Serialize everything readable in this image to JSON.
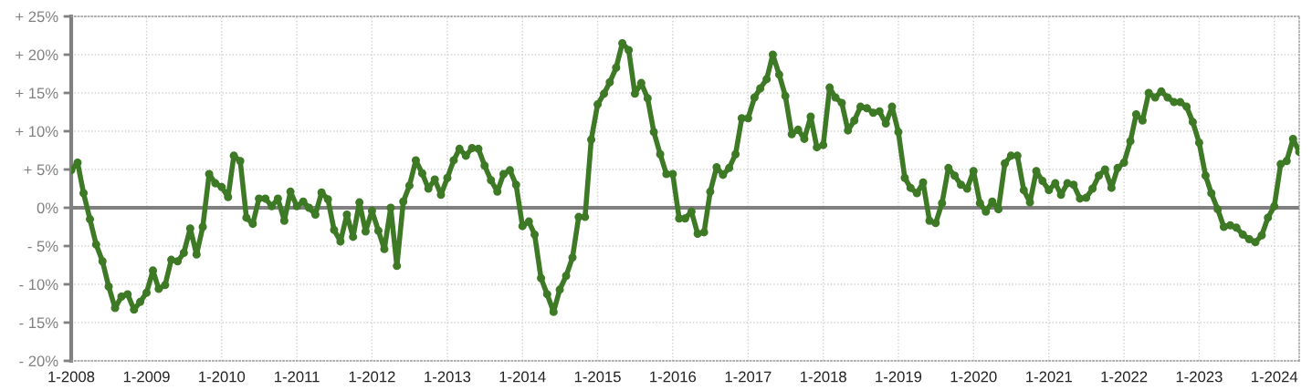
{
  "chart_data": {
    "type": "line",
    "x": [
      "2008-01",
      "2008-02",
      "2008-03",
      "2008-04",
      "2008-05",
      "2008-06",
      "2008-07",
      "2008-08",
      "2008-09",
      "2008-10",
      "2008-11",
      "2008-12",
      "2009-01",
      "2009-02",
      "2009-03",
      "2009-04",
      "2009-05",
      "2009-06",
      "2009-07",
      "2009-08",
      "2009-09",
      "2009-10",
      "2009-11",
      "2009-12",
      "2010-01",
      "2010-02",
      "2010-03",
      "2010-04",
      "2010-05",
      "2010-06",
      "2010-07",
      "2010-08",
      "2010-09",
      "2010-10",
      "2010-11",
      "2010-12",
      "2011-01",
      "2011-02",
      "2011-03",
      "2011-04",
      "2011-05",
      "2011-06",
      "2011-07",
      "2011-08",
      "2011-09",
      "2011-10",
      "2011-11",
      "2011-12",
      "2012-01",
      "2012-02",
      "2012-03",
      "2012-04",
      "2012-05",
      "2012-06",
      "2012-07",
      "2012-08",
      "2012-09",
      "2012-10",
      "2012-11",
      "2012-12",
      "2013-01",
      "2013-02",
      "2013-03",
      "2013-04",
      "2013-05",
      "2013-06",
      "2013-07",
      "2013-08",
      "2013-09",
      "2013-10",
      "2013-11",
      "2013-12",
      "2014-01",
      "2014-02",
      "2014-03",
      "2014-04",
      "2014-05",
      "2014-06",
      "2014-07",
      "2014-08",
      "2014-09",
      "2014-10",
      "2014-11",
      "2014-12",
      "2015-01",
      "2015-02",
      "2015-03",
      "2015-04",
      "2015-05",
      "2015-06",
      "2015-07",
      "2015-08",
      "2015-09",
      "2015-10",
      "2015-11",
      "2015-12",
      "2016-01",
      "2016-02",
      "2016-03",
      "2016-04",
      "2016-05",
      "2016-06",
      "2016-07",
      "2016-08",
      "2016-09",
      "2016-10",
      "2016-11",
      "2016-12",
      "2017-01",
      "2017-02",
      "2017-03",
      "2017-04",
      "2017-05",
      "2017-06",
      "2017-07",
      "2017-08",
      "2017-09",
      "2017-10",
      "2017-11",
      "2017-12",
      "2018-01",
      "2018-02",
      "2018-03",
      "2018-04",
      "2018-05",
      "2018-06",
      "2018-07",
      "2018-08",
      "2018-09",
      "2018-10",
      "2018-11",
      "2018-12",
      "2019-01",
      "2019-02",
      "2019-03",
      "2019-04",
      "2019-05",
      "2019-06",
      "2019-07",
      "2019-08",
      "2019-09",
      "2019-10",
      "2019-11",
      "2019-12",
      "2020-01",
      "2020-02",
      "2020-03",
      "2020-04",
      "2020-05",
      "2020-06",
      "2020-07",
      "2020-08",
      "2020-09",
      "2020-10",
      "2020-11",
      "2020-12",
      "2021-01",
      "2021-02",
      "2021-03",
      "2021-04",
      "2021-05",
      "2021-06",
      "2021-07",
      "2021-08",
      "2021-09",
      "2021-10",
      "2021-11",
      "2021-12",
      "2022-01",
      "2022-02",
      "2022-03",
      "2022-04",
      "2022-05",
      "2022-06",
      "2022-07",
      "2022-08",
      "2022-09",
      "2022-10",
      "2022-11",
      "2022-12",
      "2023-01",
      "2023-02",
      "2023-03",
      "2023-04",
      "2023-05",
      "2023-06",
      "2023-07",
      "2023-08",
      "2023-09",
      "2023-10",
      "2023-11",
      "2023-12",
      "2024-01",
      "2024-02",
      "2024-03",
      "2024-04",
      "2024-05"
    ],
    "series": [
      {
        "color": "#3e7a26",
        "values": [
          4.9,
          5.9,
          1.9,
          -1.5,
          -4.8,
          -7.0,
          -10.3,
          -13.1,
          -11.6,
          -11.3,
          -13.3,
          -12.3,
          -11.1,
          -8.2,
          -10.6,
          -10.1,
          -6.8,
          -7.0,
          -5.9,
          -2.7,
          -6.1,
          -2.5,
          4.4,
          3.2,
          2.7,
          1.4,
          6.8,
          6.1,
          -1.3,
          -2.1,
          1.2,
          1.2,
          0.2,
          1.2,
          -1.7,
          2.1,
          0.2,
          0.8,
          0.0,
          -0.9,
          2.0,
          1.1,
          -2.9,
          -4.4,
          -0.9,
          -3.8,
          0.7,
          -3.1,
          -0.4,
          -3.0,
          -5.4,
          0.0,
          -7.6,
          0.8,
          2.9,
          6.2,
          4.5,
          2.5,
          3.7,
          1.7,
          3.9,
          6.2,
          7.7,
          6.8,
          7.8,
          7.7,
          5.5,
          3.6,
          2.1,
          4.4,
          4.9,
          3.0,
          -2.4,
          -1.8,
          -3.5,
          -9.2,
          -11.3,
          -13.6,
          -10.7,
          -8.9,
          -6.5,
          -1.2,
          -1.2,
          8.9,
          13.5,
          14.9,
          16.4,
          18.3,
          21.5,
          20.6,
          14.9,
          16.3,
          14.3,
          9.9,
          7.0,
          4.4,
          4.4,
          -1.4,
          -1.4,
          -0.5,
          -3.4,
          -3.2,
          2.1,
          5.3,
          4.3,
          5.2,
          7.0,
          11.7,
          11.7,
          14.4,
          15.6,
          16.8,
          20.0,
          17.4,
          14.6,
          9.6,
          10.2,
          9.0,
          11.9,
          7.9,
          8.2,
          15.7,
          14.4,
          13.7,
          10.1,
          11.4,
          13.2,
          13.0,
          12.4,
          12.6,
          11.0,
          13.2,
          9.9,
          3.9,
          2.6,
          1.9,
          3.3,
          -1.7,
          -2.0,
          0.6,
          5.2,
          4.2,
          3.0,
          2.5,
          4.8,
          0.6,
          -0.5,
          0.8,
          -0.2,
          5.8,
          6.8,
          6.8,
          2.3,
          0.7,
          4.8,
          3.5,
          2.3,
          3.2,
          1.7,
          3.2,
          3.0,
          1.2,
          1.3,
          2.5,
          4.2,
          5.0,
          2.6,
          5.2,
          5.9,
          8.7,
          12.2,
          11.4,
          15.0,
          14.4,
          15.2,
          14.4,
          13.8,
          13.8,
          13.2,
          11.2,
          8.5,
          4.2,
          1.9,
          -0.2,
          -2.5,
          -2.3,
          -2.6,
          -3.5,
          -4.1,
          -4.5,
          -3.6,
          -1.3,
          0.2,
          5.7,
          6.1,
          9.0,
          7.3
        ]
      }
    ],
    "marker": "circle",
    "line_style": "solid",
    "grid": true,
    "xlim": [
      "2008-01",
      "2024-05"
    ],
    "xticks": [
      {
        "value": "2008-01",
        "label": "1-2008"
      },
      {
        "value": "2009-01",
        "label": "1-2009"
      },
      {
        "value": "2010-01",
        "label": "1-2010"
      },
      {
        "value": "2011-01",
        "label": "1-2011"
      },
      {
        "value": "2012-01",
        "label": "1-2012"
      },
      {
        "value": "2013-01",
        "label": "1-2013"
      },
      {
        "value": "2014-01",
        "label": "1-2014"
      },
      {
        "value": "2015-01",
        "label": "1-2015"
      },
      {
        "value": "2016-01",
        "label": "1-2016"
      },
      {
        "value": "2017-01",
        "label": "1-2017"
      },
      {
        "value": "2018-01",
        "label": "1-2018"
      },
      {
        "value": "2019-01",
        "label": "1-2019"
      },
      {
        "value": "2020-01",
        "label": "1-2020"
      },
      {
        "value": "2021-01",
        "label": "1-2021"
      },
      {
        "value": "2022-01",
        "label": "1-2022"
      },
      {
        "value": "2023-01",
        "label": "1-2023"
      },
      {
        "value": "2024-01",
        "label": "1-2024"
      }
    ],
    "ylim": [
      -20,
      25
    ],
    "yticks": [
      {
        "value": -20,
        "label": "- 20%"
      },
      {
        "value": -15,
        "label": "- 15%"
      },
      {
        "value": -10,
        "label": "- 10%"
      },
      {
        "value": -5,
        "label": "- 5%"
      },
      {
        "value": 0,
        "label": "0%"
      },
      {
        "value": 5,
        "label": "+ 5%"
      },
      {
        "value": 10,
        "label": "+ 10%"
      },
      {
        "value": 15,
        "label": "+ 15%"
      },
      {
        "value": 20,
        "label": "+ 20%"
      },
      {
        "value": 25,
        "label": "+ 25%"
      }
    ],
    "ref_lines": [
      {
        "axis": "y",
        "value": 0,
        "color": "#808080"
      }
    ]
  }
}
